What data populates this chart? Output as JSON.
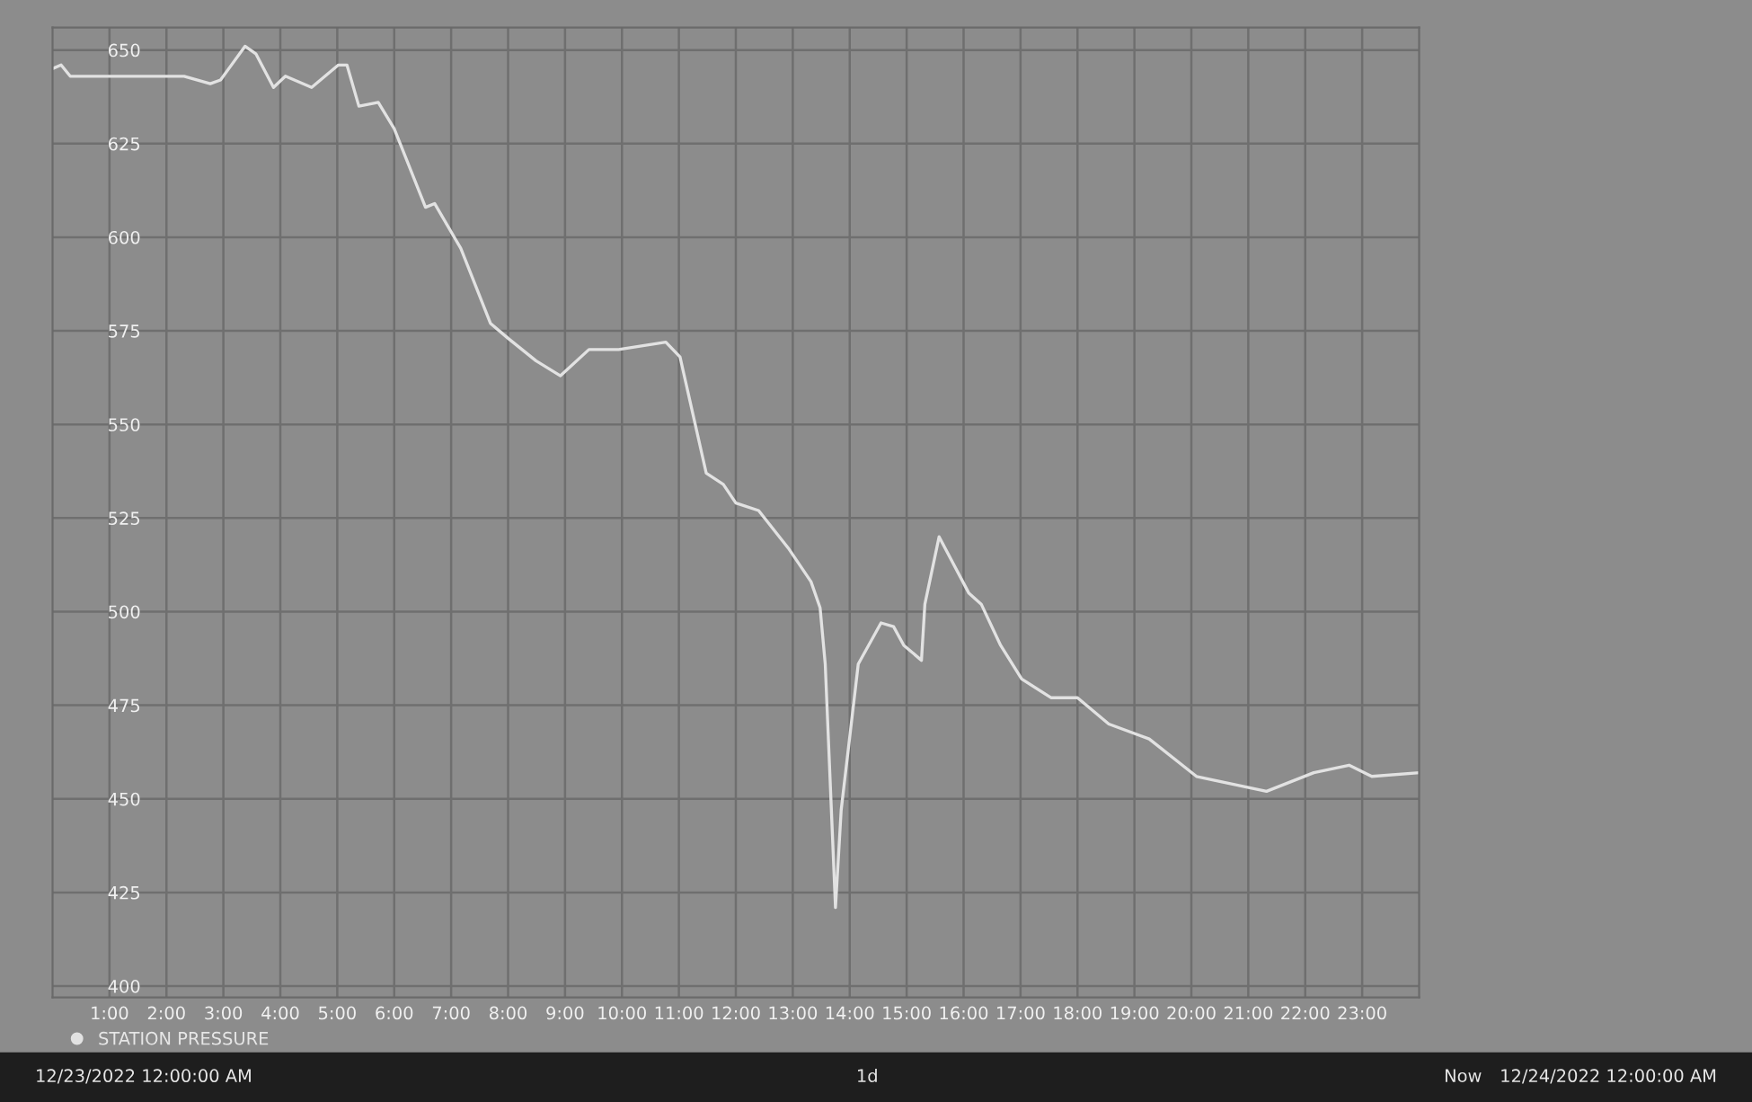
{
  "chart_data": {
    "type": "line",
    "x": [
      0,
      0.15,
      0.31,
      0.62,
      1.11,
      1.85,
      2.31,
      2.77,
      2.95,
      3.38,
      3.57,
      3.88,
      4.09,
      4.55,
      5.02,
      5.17,
      5.38,
      5.72,
      6.0,
      6.55,
      6.71,
      7.17,
      7.69,
      8.0,
      8.49,
      8.92,
      9.42,
      9.94,
      10.77,
      11.02,
      11.48,
      11.78,
      12.0,
      12.4,
      12.92,
      13.32,
      13.48,
      13.57,
      13.75,
      13.85,
      14.15,
      14.55,
      14.77,
      14.95,
      15.26,
      15.32,
      15.57,
      16.09,
      16.31,
      16.65,
      17.02,
      17.54,
      18.0,
      18.55,
      19.26,
      20.09,
      21.32,
      22.15,
      22.77,
      23.17,
      24.0
    ],
    "series": [
      {
        "name": "STATION PRESSURE",
        "color": "#e2e2e2",
        "values": [
          645,
          646,
          643,
          643,
          643,
          643,
          643,
          641,
          642,
          651,
          649,
          640,
          643,
          640,
          646,
          646,
          635,
          636,
          629,
          608,
          609,
          597,
          577,
          573,
          567,
          563,
          570,
          570,
          572,
          568,
          537,
          534,
          529,
          527,
          517,
          508,
          501,
          486,
          421,
          447,
          486,
          497,
          496,
          491,
          487,
          502,
          520,
          505,
          502,
          491,
          482,
          477,
          477,
          470,
          466,
          456,
          452,
          457,
          459,
          456,
          457
        ]
      }
    ],
    "xlim": [
      0,
      24
    ],
    "xticks": [
      {
        "value": 1,
        "label": "1:00"
      },
      {
        "value": 2,
        "label": "2:00"
      },
      {
        "value": 3,
        "label": "3:00"
      },
      {
        "value": 4,
        "label": "4:00"
      },
      {
        "value": 5,
        "label": "5:00"
      },
      {
        "value": 6,
        "label": "6:00"
      },
      {
        "value": 7,
        "label": "7:00"
      },
      {
        "value": 8,
        "label": "8:00"
      },
      {
        "value": 9,
        "label": "9:00"
      },
      {
        "value": 10,
        "label": "10:00"
      },
      {
        "value": 11,
        "label": "11:00"
      },
      {
        "value": 12,
        "label": "12:00"
      },
      {
        "value": 13,
        "label": "13:00"
      },
      {
        "value": 14,
        "label": "14:00"
      },
      {
        "value": 15,
        "label": "15:00"
      },
      {
        "value": 16,
        "label": "16:00"
      },
      {
        "value": 17,
        "label": "17:00"
      },
      {
        "value": 18,
        "label": "18:00"
      },
      {
        "value": 19,
        "label": "19:00"
      },
      {
        "value": 20,
        "label": "20:00"
      },
      {
        "value": 21,
        "label": "21:00"
      },
      {
        "value": 22,
        "label": "22:00"
      },
      {
        "value": 23,
        "label": "23:00"
      }
    ],
    "ylim": [
      397,
      656
    ],
    "yticks": [
      400,
      425,
      450,
      475,
      500,
      525,
      550,
      575,
      600,
      625,
      650
    ],
    "grid": true,
    "legend": "bottom left",
    "line_style": "solid",
    "annotations": [
      "12/23/2022 12:00:00 AM",
      "1d",
      "Now",
      "12/24/2022 12:00:00 AM"
    ]
  }
}
